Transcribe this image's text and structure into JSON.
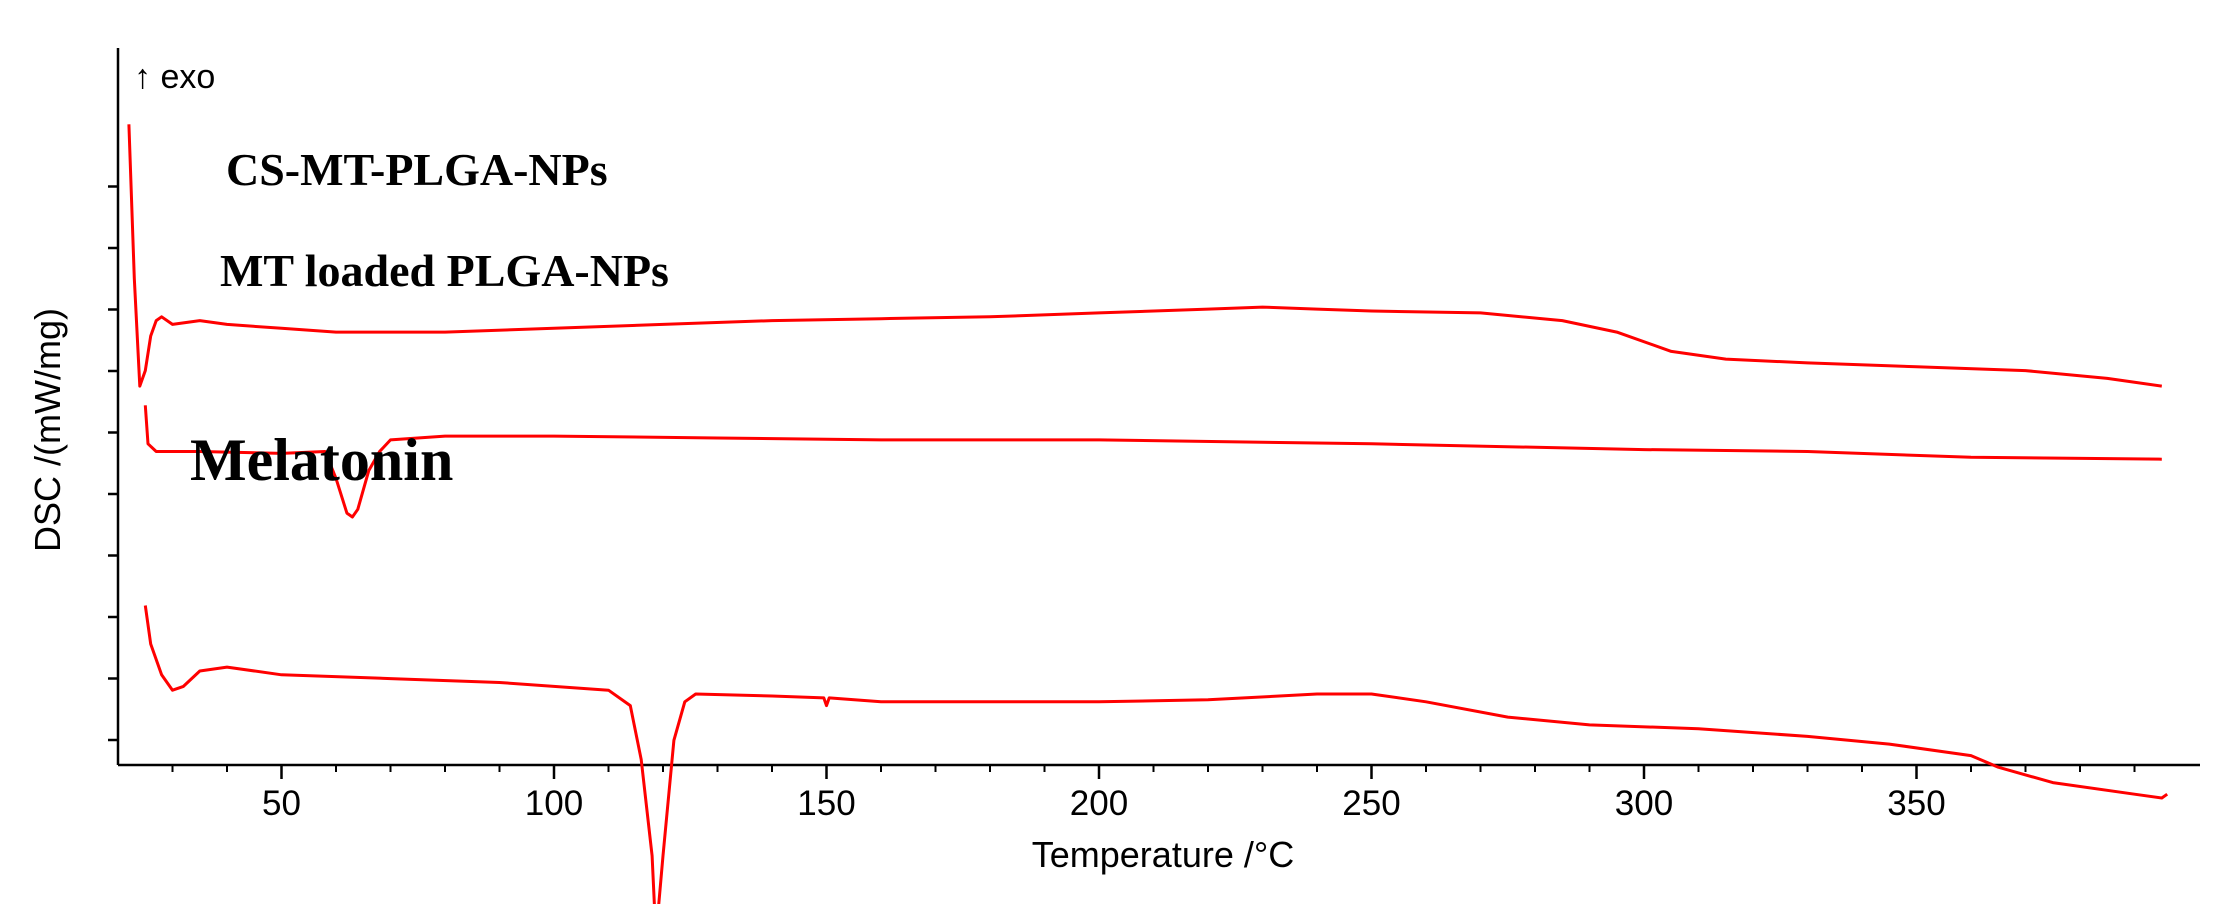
{
  "chart_data": {
    "type": "line",
    "xlabel": "Temperature /°C",
    "ylabel": "DSC /(mW/mg)",
    "annotation": "↑ exo",
    "xlim": [
      20,
      400
    ],
    "x_ticks": [
      50,
      100,
      150,
      200,
      250,
      300,
      350
    ],
    "y_ticks_labeled": false,
    "y_tick_count": 10,
    "grid": false,
    "legend": "none",
    "line_color": "#ff0000",
    "series": [
      {
        "name": "CS-MT-PLGA-NPs",
        "points": [
          [
            22,
            0.95
          ],
          [
            23,
            0.55
          ],
          [
            24,
            0.27
          ],
          [
            25,
            0.31
          ],
          [
            26,
            0.4
          ],
          [
            27,
            0.44
          ],
          [
            28,
            0.45
          ],
          [
            30,
            0.43
          ],
          [
            35,
            0.44
          ],
          [
            40,
            0.43
          ],
          [
            50,
            0.42
          ],
          [
            60,
            0.41
          ],
          [
            80,
            0.41
          ],
          [
            100,
            0.42
          ],
          [
            120,
            0.43
          ],
          [
            140,
            0.44
          ],
          [
            160,
            0.445
          ],
          [
            180,
            0.45
          ],
          [
            200,
            0.46
          ],
          [
            220,
            0.47
          ],
          [
            230,
            0.475
          ],
          [
            240,
            0.47
          ],
          [
            250,
            0.465
          ],
          [
            270,
            0.46
          ],
          [
            285,
            0.44
          ],
          [
            295,
            0.41
          ],
          [
            305,
            0.36
          ],
          [
            315,
            0.34
          ],
          [
            330,
            0.33
          ],
          [
            350,
            0.32
          ],
          [
            370,
            0.31
          ],
          [
            385,
            0.29
          ],
          [
            395,
            0.27
          ]
        ]
      },
      {
        "name": "MT loaded PLGA-NPs",
        "points": [
          [
            25,
            0.22
          ],
          [
            25.5,
            0.12
          ],
          [
            27,
            0.1
          ],
          [
            35,
            0.1
          ],
          [
            50,
            0.095
          ],
          [
            58,
            0.1
          ],
          [
            60,
            0.03
          ],
          [
            62,
            -0.06
          ],
          [
            63,
            -0.07
          ],
          [
            64,
            -0.05
          ],
          [
            66,
            0.05
          ],
          [
            68,
            0.1
          ],
          [
            70,
            0.13
          ],
          [
            80,
            0.14
          ],
          [
            100,
            0.14
          ],
          [
            130,
            0.135
          ],
          [
            160,
            0.13
          ],
          [
            200,
            0.13
          ],
          [
            250,
            0.12
          ],
          [
            300,
            0.105
          ],
          [
            330,
            0.1
          ],
          [
            360,
            0.085
          ],
          [
            395,
            0.08
          ]
        ]
      },
      {
        "name": "Melatonin",
        "points": [
          [
            25,
            -0.3
          ],
          [
            26,
            -0.4
          ],
          [
            28,
            -0.48
          ],
          [
            30,
            -0.52
          ],
          [
            32,
            -0.51
          ],
          [
            35,
            -0.47
          ],
          [
            40,
            -0.46
          ],
          [
            50,
            -0.48
          ],
          [
            70,
            -0.49
          ],
          [
            90,
            -0.5
          ],
          [
            110,
            -0.52
          ],
          [
            114,
            -0.56
          ],
          [
            116,
            -0.7
          ],
          [
            118,
            -0.95
          ],
          [
            118.5,
            -1.1
          ],
          [
            119,
            -1.11
          ],
          [
            120,
            -0.95
          ],
          [
            122,
            -0.65
          ],
          [
            124,
            -0.55
          ],
          [
            126,
            -0.53
          ],
          [
            140,
            -0.535
          ],
          [
            149.5,
            -0.54
          ],
          [
            150,
            -0.56
          ],
          [
            150.5,
            -0.54
          ],
          [
            160,
            -0.55
          ],
          [
            180,
            -0.55
          ],
          [
            200,
            -0.55
          ],
          [
            220,
            -0.545
          ],
          [
            240,
            -0.53
          ],
          [
            250,
            -0.53
          ],
          [
            260,
            -0.55
          ],
          [
            275,
            -0.59
          ],
          [
            290,
            -0.61
          ],
          [
            310,
            -0.62
          ],
          [
            330,
            -0.64
          ],
          [
            345,
            -0.66
          ],
          [
            360,
            -0.69
          ],
          [
            365,
            -0.72
          ],
          [
            375,
            -0.76
          ],
          [
            390,
            -0.79
          ],
          [
            395,
            -0.8
          ],
          [
            396,
            -0.79
          ]
        ]
      }
    ]
  }
}
